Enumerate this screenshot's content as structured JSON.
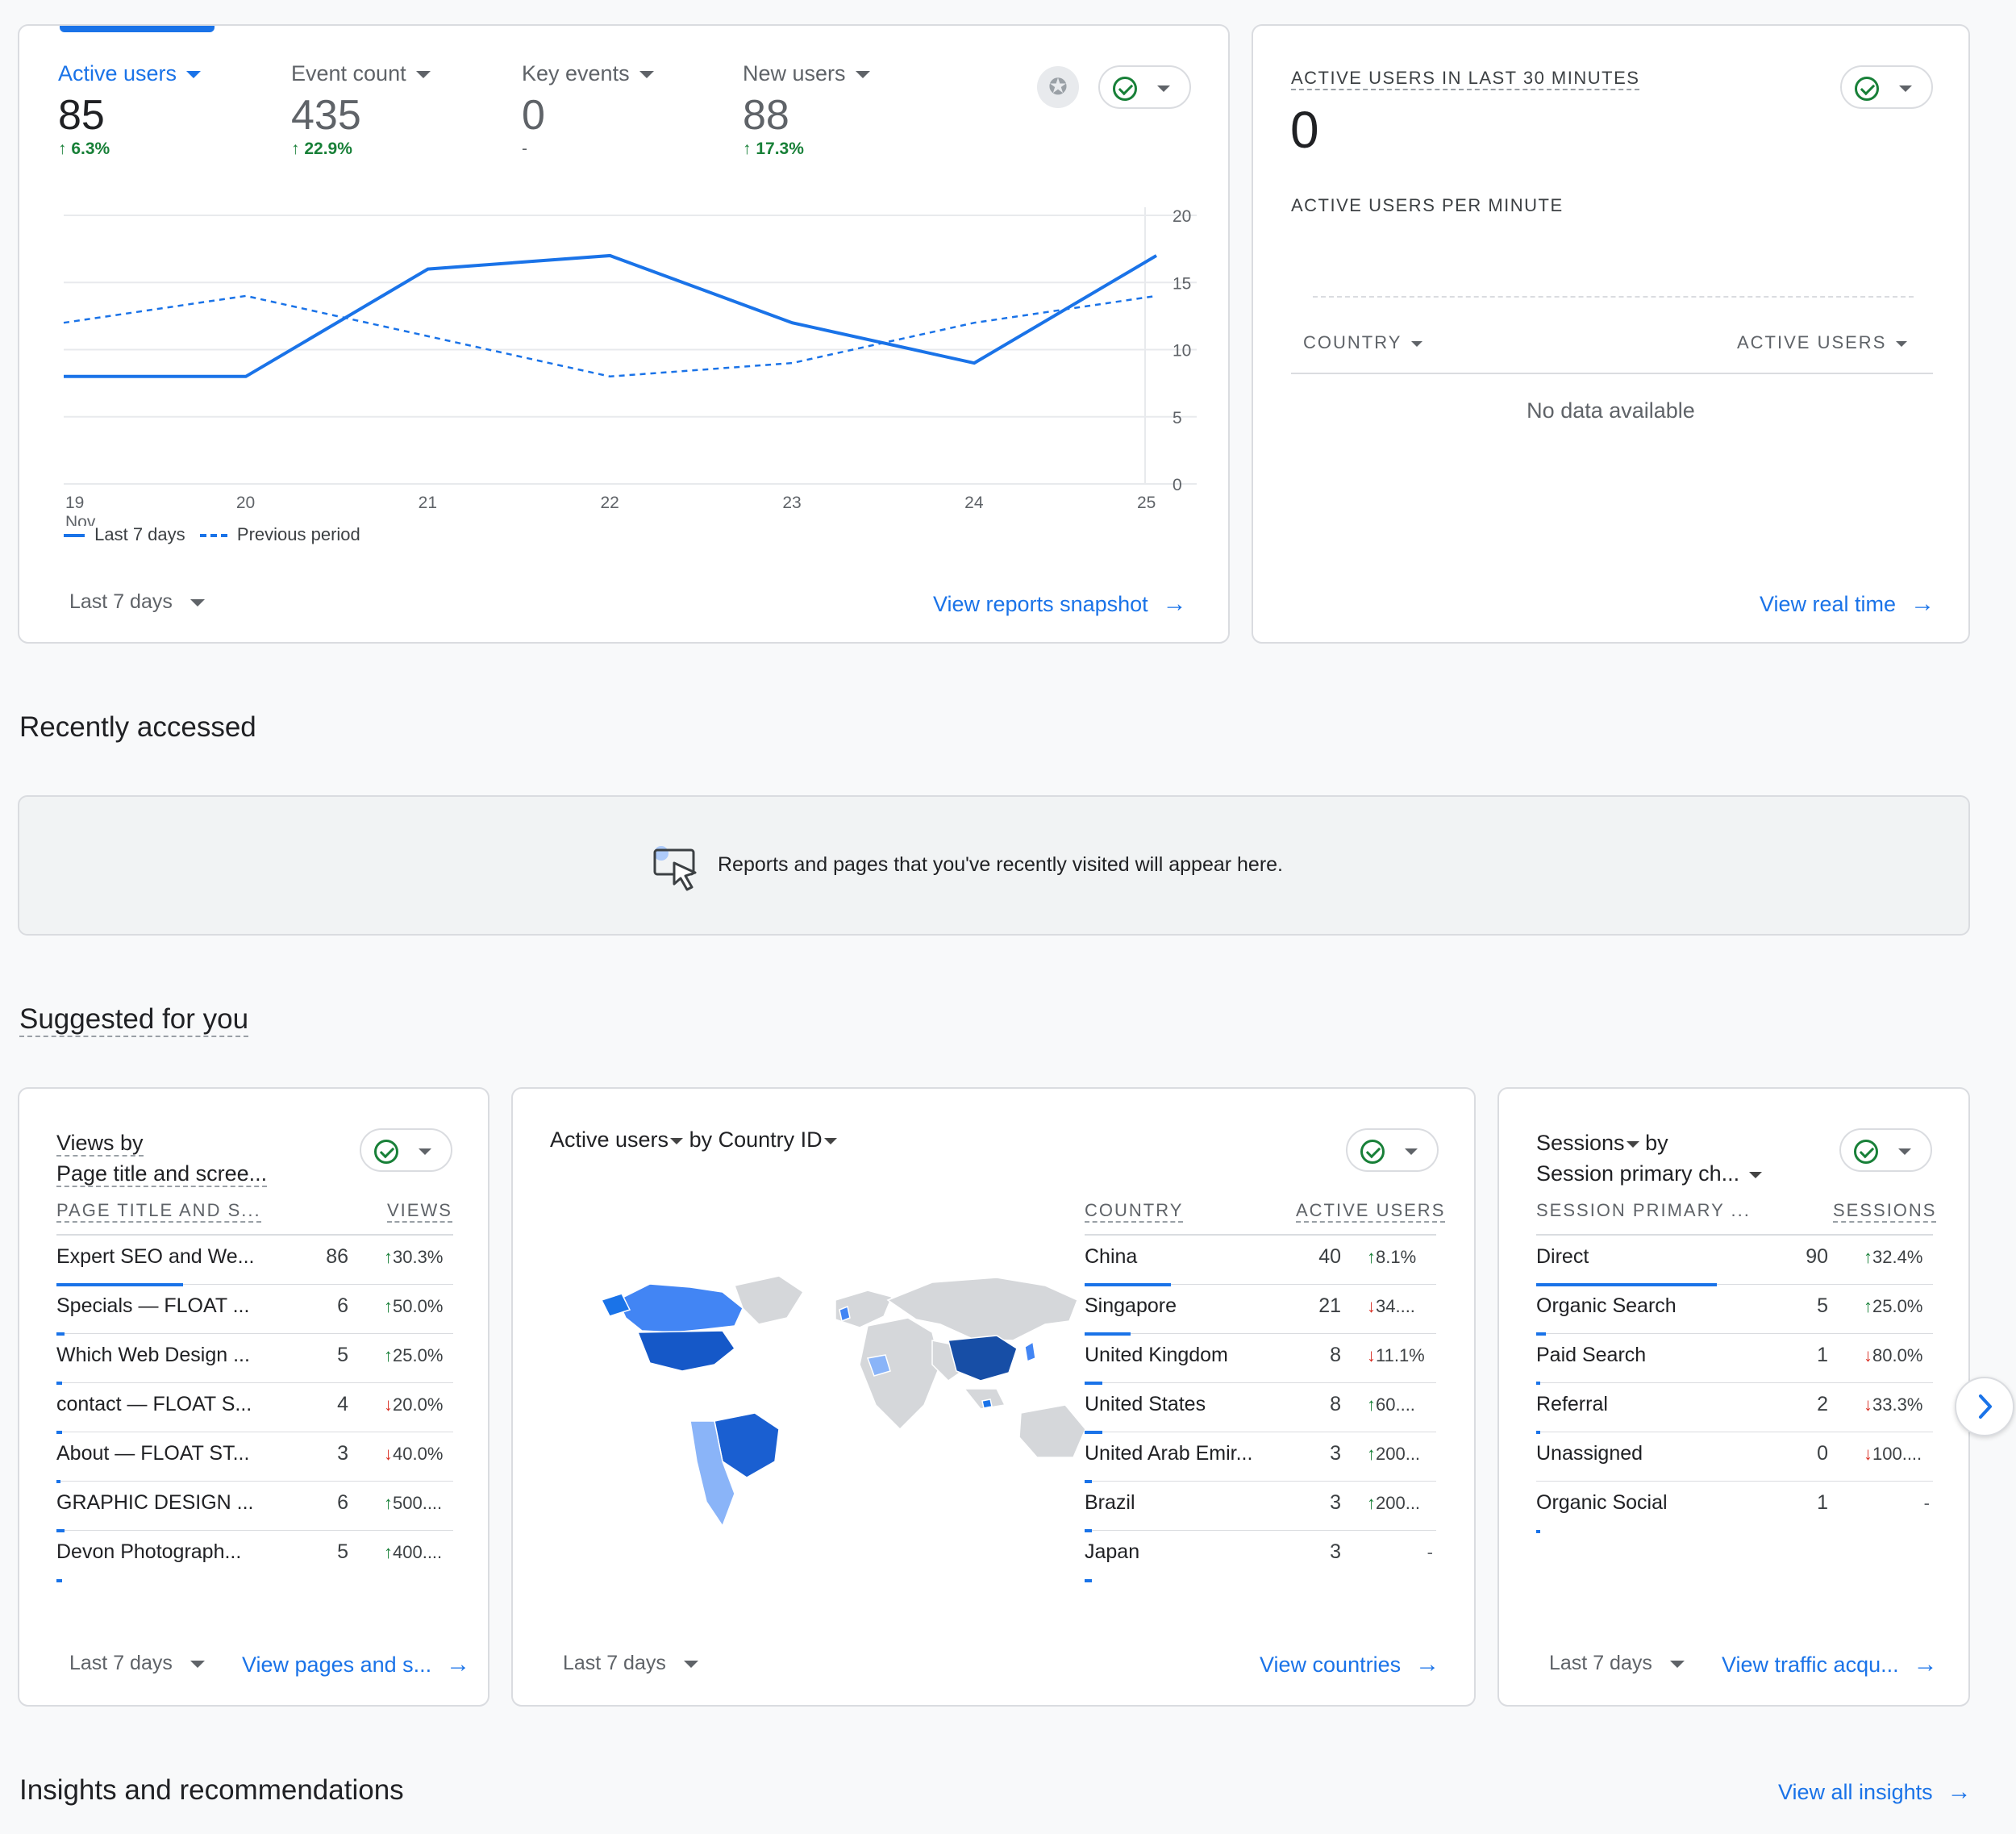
{
  "overview": {
    "metrics": [
      {
        "label": "Active users",
        "value": "85",
        "delta": "6.3%",
        "direction": "up",
        "active": true
      },
      {
        "label": "Event count",
        "value": "435",
        "delta": "22.9%",
        "direction": "up",
        "active": false
      },
      {
        "label": "Key events",
        "value": "0",
        "delta": "-",
        "direction": "none",
        "active": false
      },
      {
        "label": "New users",
        "value": "88",
        "delta": "17.3%",
        "direction": "up",
        "active": false
      }
    ],
    "legend": {
      "current": "Last 7 days",
      "previous": "Previous period"
    },
    "date_range": "Last 7 days",
    "link": "View reports snapshot"
  },
  "chart_data": {
    "type": "line",
    "x": [
      "19",
      "20",
      "21",
      "22",
      "23",
      "24",
      "25"
    ],
    "x_sub": "Nov",
    "series": [
      {
        "name": "Last 7 days",
        "values": [
          8,
          8,
          16,
          17,
          12,
          9,
          17
        ],
        "style": "solid",
        "color": "#1a73e8"
      },
      {
        "name": "Previous period",
        "values": [
          12,
          14,
          11,
          8,
          9,
          12,
          14
        ],
        "style": "dashed",
        "color": "#1a73e8"
      }
    ],
    "yticks": [
      "20",
      "15",
      "10",
      "5",
      "0"
    ],
    "ylim": [
      0,
      20
    ]
  },
  "realtime": {
    "title": "ACTIVE USERS IN LAST 30 MINUTES",
    "value": "0",
    "per_minute": "ACTIVE USERS PER MINUTE",
    "col_country": "COUNTRY",
    "col_users": "ACTIVE USERS",
    "empty": "No data available",
    "link": "View real time"
  },
  "recent": {
    "title": "Recently accessed",
    "message": "Reports and pages that you've recently visited will appear here."
  },
  "suggested": {
    "title": "Suggested for you",
    "pages": {
      "title_line1": "Views by",
      "title_line2": "Page title and scree...",
      "col_name": "PAGE TITLE AND S...",
      "col_value": "VIEWS",
      "rows": [
        {
          "name": "Expert SEO and We...",
          "value": "86",
          "change": "30.3%",
          "dir": "up",
          "share": 0.64
        },
        {
          "name": "Specials — FLOAT ...",
          "value": "6",
          "change": "50.0%",
          "dir": "up",
          "share": 0.04
        },
        {
          "name": "Which Web Design ...",
          "value": "5",
          "change": "25.0%",
          "dir": "up",
          "share": 0.03
        },
        {
          "name": "contact — FLOAT S...",
          "value": "4",
          "change": "20.0%",
          "dir": "down",
          "share": 0.03
        },
        {
          "name": "About — FLOAT ST...",
          "value": "3",
          "change": "40.0%",
          "dir": "down",
          "share": 0.02
        },
        {
          "name": "GRAPHIC DESIGN ...",
          "value": "6",
          "change": "500....",
          "dir": "up",
          "share": 0.04
        },
        {
          "name": "Devon Photograph...",
          "value": "5",
          "change": "400....",
          "dir": "up",
          "share": 0.03
        }
      ],
      "date_range": "Last 7 days",
      "link": "View pages and s..."
    },
    "countries": {
      "title_metric": "Active users",
      "title_by": "by",
      "title_dim": "Country ID",
      "col_name": "COUNTRY",
      "col_value": "ACTIVE USERS",
      "rows": [
        {
          "name": "China",
          "value": "40",
          "change": "8.1%",
          "dir": "up",
          "share": 0.49
        },
        {
          "name": "Singapore",
          "value": "21",
          "change": "34....",
          "dir": "down",
          "share": 0.26
        },
        {
          "name": "United Kingdom",
          "value": "8",
          "change": "11.1%",
          "dir": "down",
          "share": 0.1
        },
        {
          "name": "United States",
          "value": "8",
          "change": "60....",
          "dir": "up",
          "share": 0.1
        },
        {
          "name": "United Arab Emir...",
          "value": "3",
          "change": "200...",
          "dir": "up",
          "share": 0.04
        },
        {
          "name": "Brazil",
          "value": "3",
          "change": "200...",
          "dir": "up",
          "share": 0.04
        },
        {
          "name": "Japan",
          "value": "3",
          "change": "-",
          "dir": "none",
          "share": 0.04
        }
      ],
      "date_range": "Last 7 days",
      "link": "View countries"
    },
    "sessions": {
      "title_line1": "Sessions",
      "title_by": "by",
      "title_line2": "Session primary ch...",
      "col_name": "SESSION PRIMARY ...",
      "col_value": "SESSIONS",
      "rows": [
        {
          "name": "Direct",
          "value": "90",
          "change": "32.4%",
          "dir": "up",
          "share": 0.91
        },
        {
          "name": "Organic Search",
          "value": "5",
          "change": "25.0%",
          "dir": "up",
          "share": 0.05
        },
        {
          "name": "Paid Search",
          "value": "1",
          "change": "80.0%",
          "dir": "down",
          "share": 0.01
        },
        {
          "name": "Referral",
          "value": "2",
          "change": "33.3%",
          "dir": "down",
          "share": 0.02
        },
        {
          "name": "Unassigned",
          "value": "0",
          "change": "100....",
          "dir": "down",
          "share": 0
        },
        {
          "name": "Organic Social",
          "value": "1",
          "change": "-",
          "dir": "none",
          "share": 0.01
        }
      ],
      "date_range": "Last 7 days",
      "link": "View traffic acqu..."
    }
  },
  "insights": {
    "title": "Insights and recommendations",
    "link": "View all insights"
  },
  "colors": {
    "accent": "#1a73e8",
    "up": "#188038",
    "down": "#d93025",
    "border": "#dadce0"
  },
  "icons": [
    "chevron-down-icon",
    "check-circle-icon",
    "arrow-forward-icon",
    "cursor-window-icon",
    "insights-badge-icon",
    "chevron-right-icon",
    "arrow-up-icon",
    "arrow-down-icon"
  ]
}
